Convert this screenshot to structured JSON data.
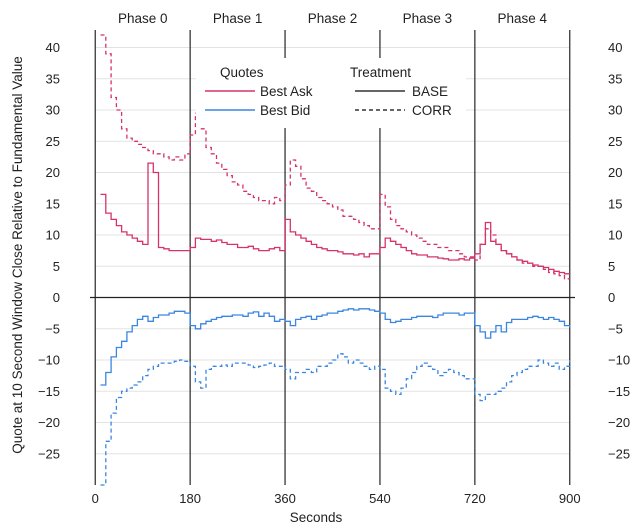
{
  "chart_data": {
    "type": "line",
    "xlabel": "Seconds",
    "ylabel": "Quote at 10 Second Window Close Relative to Fundamental Value",
    "xlim": [
      -10,
      910
    ],
    "ylim": [
      -30,
      42
    ],
    "x_ticks": [
      0,
      180,
      360,
      540,
      720,
      900
    ],
    "y_ticks_left": [
      -25,
      -20,
      -15,
      -10,
      -5,
      0,
      5,
      10,
      15,
      20,
      25,
      30,
      35,
      40
    ],
    "y_ticks_right": [
      -25,
      -20,
      -15,
      -10,
      -5,
      0,
      5,
      10,
      15,
      20,
      25,
      30,
      35,
      40
    ],
    "grid": "horizontal",
    "phase_boundaries": [
      0,
      180,
      360,
      540,
      720,
      900
    ],
    "phases": [
      {
        "label": "Phase 0",
        "center": 90
      },
      {
        "label": "Phase 1",
        "center": 270
      },
      {
        "label": "Phase 2",
        "center": 450
      },
      {
        "label": "Phase 3",
        "center": 630
      },
      {
        "label": "Phase 4",
        "center": 810
      }
    ],
    "legend": {
      "placement": "top-center",
      "quotes_title": "Quotes",
      "treatment_title": "Treatment",
      "quotes": [
        {
          "label": "Best Ask",
          "color": "#d6336c"
        },
        {
          "label": "Best Bid",
          "color": "#3a86e0"
        }
      ],
      "treatments": [
        {
          "label": "BASE",
          "style": "solid"
        },
        {
          "label": "CORR",
          "style": "dashed"
        }
      ]
    },
    "series": [
      {
        "quote": "Best Ask",
        "treatment": "BASE",
        "color": "#d6336c",
        "dash": "solid",
        "x": [
          10,
          20,
          30,
          40,
          50,
          60,
          70,
          80,
          90,
          100,
          110,
          120,
          130,
          140,
          150,
          160,
          170,
          180,
          190,
          200,
          210,
          220,
          230,
          240,
          250,
          260,
          270,
          280,
          290,
          300,
          310,
          320,
          330,
          340,
          350,
          360,
          370,
          380,
          390,
          400,
          410,
          420,
          430,
          440,
          450,
          460,
          470,
          480,
          490,
          500,
          510,
          520,
          530,
          540,
          550,
          560,
          570,
          580,
          590,
          600,
          610,
          620,
          630,
          640,
          650,
          660,
          670,
          680,
          690,
          700,
          710,
          720,
          730,
          740,
          750,
          760,
          770,
          780,
          790,
          800,
          810,
          820,
          830,
          840,
          850,
          860,
          870,
          880,
          890,
          900
        ],
        "y": [
          16.5,
          13.5,
          12.5,
          11.5,
          10.5,
          10.0,
          9.5,
          9.0,
          8.5,
          21.5,
          20.0,
          8.0,
          7.8,
          7.5,
          7.5,
          7.5,
          7.5,
          8.0,
          9.5,
          9.3,
          9.3,
          9.0,
          9.2,
          8.8,
          8.5,
          8.5,
          8.0,
          8.0,
          8.2,
          7.8,
          7.5,
          7.5,
          7.8,
          8.0,
          7.5,
          12.5,
          10.5,
          10.0,
          9.5,
          9.0,
          8.5,
          8.0,
          7.8,
          7.5,
          7.5,
          7.3,
          7.0,
          7.0,
          6.8,
          7.0,
          6.5,
          7.0,
          7.0,
          8.0,
          9.5,
          9.0,
          8.5,
          8.0,
          7.5,
          7.0,
          6.8,
          6.8,
          6.5,
          6.5,
          6.3,
          6.2,
          6.0,
          6.0,
          6.2,
          6.0,
          6.3,
          7.0,
          8.5,
          12.0,
          9.0,
          8.5,
          7.5,
          7.0,
          6.5,
          6.0,
          5.8,
          5.5,
          5.2,
          5.0,
          4.8,
          4.5,
          4.2,
          4.0,
          3.8,
          3.8
        ]
      },
      {
        "quote": "Best Ask",
        "treatment": "CORR",
        "color": "#d6336c",
        "dash": "dashed",
        "x": [
          10,
          20,
          30,
          40,
          50,
          60,
          70,
          80,
          90,
          100,
          110,
          120,
          130,
          140,
          150,
          160,
          170,
          180,
          190,
          200,
          210,
          220,
          230,
          240,
          250,
          260,
          270,
          280,
          290,
          300,
          310,
          320,
          330,
          340,
          350,
          360,
          370,
          380,
          390,
          400,
          410,
          420,
          430,
          440,
          450,
          460,
          470,
          480,
          490,
          500,
          510,
          520,
          530,
          540,
          550,
          560,
          570,
          580,
          590,
          600,
          610,
          620,
          630,
          640,
          650,
          660,
          670,
          680,
          690,
          700,
          710,
          720,
          730,
          740,
          750,
          760,
          770,
          780,
          790,
          800,
          810,
          820,
          830,
          840,
          850,
          860,
          870,
          880,
          890,
          900
        ],
        "y": [
          42.0,
          39.0,
          32.0,
          30.0,
          27.0,
          25.5,
          25.0,
          24.5,
          24.0,
          23.5,
          23.0,
          23.0,
          22.5,
          22.0,
          22.5,
          22.0,
          23.0,
          26.0,
          29.5,
          27.0,
          24.0,
          23.0,
          21.5,
          20.5,
          19.5,
          18.5,
          18.0,
          17.0,
          16.5,
          16.0,
          15.5,
          15.5,
          15.0,
          16.0,
          15.5,
          18.0,
          22.0,
          21.0,
          19.0,
          17.5,
          17.0,
          16.0,
          15.5,
          15.0,
          14.5,
          14.0,
          13.0,
          13.0,
          12.5,
          12.0,
          11.5,
          11.0,
          11.0,
          16.5,
          14.5,
          12.5,
          11.5,
          11.0,
          10.5,
          10.0,
          9.5,
          9.0,
          8.5,
          8.5,
          8.0,
          8.0,
          7.5,
          7.5,
          7.0,
          6.5,
          6.5,
          6.0,
          8.5,
          11.0,
          10.0,
          8.5,
          7.5,
          7.0,
          6.5,
          6.0,
          5.5,
          5.5,
          5.0,
          5.0,
          4.5,
          4.0,
          3.8,
          3.5,
          3.0,
          3.0
        ]
      },
      {
        "quote": "Best Bid",
        "treatment": "BASE",
        "color": "#3a86e0",
        "dash": "solid",
        "x": [
          10,
          20,
          30,
          40,
          50,
          60,
          70,
          80,
          90,
          100,
          110,
          120,
          130,
          140,
          150,
          160,
          170,
          180,
          190,
          200,
          210,
          220,
          230,
          240,
          250,
          260,
          270,
          280,
          290,
          300,
          310,
          320,
          330,
          340,
          350,
          360,
          370,
          380,
          390,
          400,
          410,
          420,
          430,
          440,
          450,
          460,
          470,
          480,
          490,
          500,
          510,
          520,
          530,
          540,
          550,
          560,
          570,
          580,
          590,
          600,
          610,
          620,
          630,
          640,
          650,
          660,
          670,
          680,
          690,
          700,
          710,
          720,
          730,
          740,
          750,
          760,
          770,
          780,
          790,
          800,
          810,
          820,
          830,
          840,
          850,
          860,
          870,
          880,
          890,
          900
        ],
        "y": [
          -14.0,
          -12.0,
          -9.5,
          -8.0,
          -7.0,
          -5.5,
          -4.5,
          -3.5,
          -3.0,
          -3.8,
          -3.2,
          -2.8,
          -2.8,
          -2.5,
          -2.2,
          -2.2,
          -2.5,
          -4.5,
          -5.0,
          -4.2,
          -3.8,
          -3.5,
          -3.2,
          -3.0,
          -3.0,
          -2.8,
          -2.8,
          -3.0,
          -2.5,
          -2.3,
          -3.0,
          -2.5,
          -3.0,
          -3.8,
          -3.5,
          -3.8,
          -4.5,
          -3.5,
          -3.2,
          -3.0,
          -3.5,
          -3.0,
          -2.8,
          -2.5,
          -2.5,
          -2.2,
          -2.0,
          -1.8,
          -2.0,
          -1.8,
          -1.8,
          -2.0,
          -2.2,
          -2.5,
          -3.5,
          -4.0,
          -3.8,
          -3.5,
          -3.5,
          -3.2,
          -3.0,
          -3.0,
          -3.0,
          -3.2,
          -2.8,
          -2.5,
          -2.5,
          -2.5,
          -2.8,
          -2.5,
          -2.5,
          -4.5,
          -5.5,
          -6.5,
          -5.5,
          -4.5,
          -5.5,
          -4.0,
          -3.5,
          -3.5,
          -3.5,
          -3.2,
          -3.0,
          -3.2,
          -3.5,
          -3.2,
          -3.5,
          -3.8,
          -4.5,
          -4.8
        ]
      },
      {
        "quote": "Best Bid",
        "treatment": "CORR",
        "color": "#3a86e0",
        "dash": "dashed",
        "x": [
          10,
          20,
          30,
          40,
          50,
          60,
          70,
          80,
          90,
          100,
          110,
          120,
          130,
          140,
          150,
          160,
          170,
          180,
          190,
          200,
          210,
          220,
          230,
          240,
          250,
          260,
          270,
          280,
          290,
          300,
          310,
          320,
          330,
          340,
          350,
          360,
          370,
          380,
          390,
          400,
          410,
          420,
          430,
          440,
          450,
          460,
          470,
          480,
          490,
          500,
          510,
          520,
          530,
          540,
          550,
          560,
          570,
          580,
          590,
          600,
          610,
          620,
          630,
          640,
          650,
          660,
          670,
          680,
          690,
          700,
          710,
          720,
          730,
          740,
          750,
          760,
          770,
          780,
          790,
          800,
          810,
          820,
          830,
          840,
          850,
          860,
          870,
          880,
          890,
          900
        ],
        "y": [
          -30.0,
          -23.0,
          -18.5,
          -16.0,
          -15.0,
          -14.5,
          -14.0,
          -13.5,
          -12.5,
          -11.5,
          -11.0,
          -10.5,
          -10.5,
          -10.5,
          -10.2,
          -10.0,
          -10.2,
          -11.0,
          -13.5,
          -14.5,
          -11.5,
          -11.0,
          -11.0,
          -10.8,
          -11.0,
          -10.5,
          -10.5,
          -10.5,
          -10.8,
          -11.2,
          -11.0,
          -10.8,
          -10.5,
          -11.0,
          -11.0,
          -11.5,
          -13.0,
          -12.0,
          -12.0,
          -11.5,
          -12.0,
          -11.0,
          -11.0,
          -10.5,
          -10.0,
          -9.0,
          -9.5,
          -10.5,
          -10.0,
          -10.5,
          -11.0,
          -11.5,
          -11.0,
          -11.5,
          -14.5,
          -15.0,
          -15.5,
          -14.5,
          -13.0,
          -12.0,
          -11.0,
          -10.5,
          -11.0,
          -11.5,
          -12.5,
          -12.0,
          -11.5,
          -12.0,
          -12.5,
          -13.0,
          -13.0,
          -15.5,
          -16.5,
          -15.5,
          -15.5,
          -15.0,
          -14.5,
          -13.5,
          -12.5,
          -12.0,
          -11.5,
          -11.0,
          -11.0,
          -10.0,
          -10.5,
          -11.0,
          -10.5,
          -11.5,
          -11.0,
          -10.0
        ]
      }
    ]
  }
}
